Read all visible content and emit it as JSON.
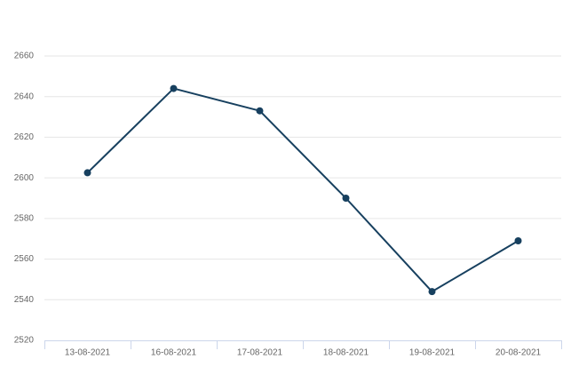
{
  "chart_data": {
    "type": "line",
    "categories": [
      "13-08-2021",
      "16-08-2021",
      "17-08-2021",
      "18-08-2021",
      "19-08-2021",
      "20-08-2021"
    ],
    "values": [
      2602.5,
      2644,
      2633,
      2590,
      2544,
      2569
    ],
    "color": "#17405f",
    "ylim": [
      2520,
      2660
    ],
    "yticks": [
      2520,
      2540,
      2560,
      2580,
      2600,
      2620,
      2640,
      2660
    ],
    "grid": true
  }
}
